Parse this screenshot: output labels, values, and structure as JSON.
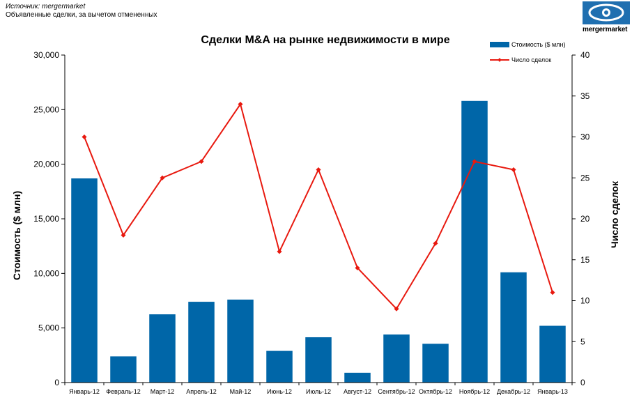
{
  "header": {
    "source": "Источник: mergermarket",
    "note": "Объявленные сделки, за вычетом отмененных",
    "logo_text": "mergermarket"
  },
  "colors": {
    "bar": "#0066a8",
    "line": "#e8190f",
    "logo": "#1f6fb0"
  },
  "chart_data": {
    "type": "bar",
    "title": "Сделки M&A  на рынке недвижимости в мире",
    "categories": [
      "Январь-12",
      "Февраль-12",
      "Март-12",
      "Апрель-12",
      "Май-12",
      "Июнь-12",
      "Июль-12",
      "Август-12",
      "Сентябрь-12",
      "Октябрь-12",
      "Ноябрь-12",
      "Декабрь-12",
      "Январь-13"
    ],
    "series": [
      {
        "name": "Стоимость ($ млн)",
        "type": "bar",
        "axis": "left",
        "values": [
          18700,
          2400,
          6250,
          7400,
          7600,
          2900,
          4150,
          900,
          4400,
          3550,
          25800,
          10100,
          5200
        ]
      },
      {
        "name": "Число сделок",
        "type": "line",
        "axis": "right",
        "values": [
          30,
          18,
          25,
          27,
          34,
          16,
          26,
          14,
          9,
          17,
          27,
          26,
          11
        ]
      }
    ],
    "ylabel": "Стоимость ($ млн)",
    "y2label": "Число сделок",
    "ylim": [
      0,
      30000
    ],
    "y2lim": [
      0,
      40
    ],
    "yticks": [
      "0",
      "5,000",
      "10,000",
      "15,000",
      "20,000",
      "25,000",
      "30,000"
    ],
    "y2ticks": [
      "0",
      "5",
      "10",
      "15",
      "20",
      "25",
      "30",
      "35",
      "40"
    ],
    "grid": false,
    "legend": "top-right"
  }
}
